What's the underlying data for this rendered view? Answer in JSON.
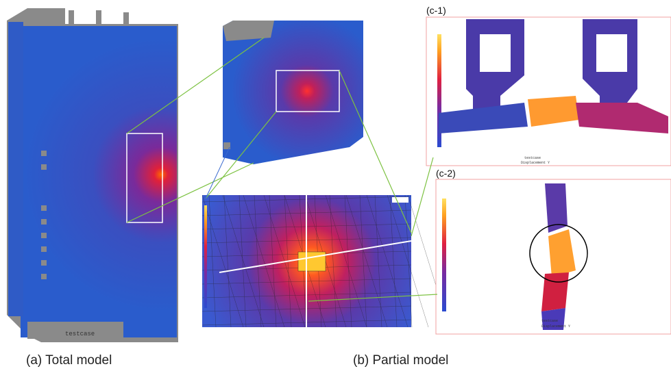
{
  "labels": {
    "total": "(a) Total model",
    "partial": "(b) Partial model",
    "c1": "(c-1)",
    "c2": "(c-2)"
  },
  "screens": {
    "total_caption": "testcase",
    "c1_footer": [
      "testcase",
      "Displacement Y"
    ],
    "c2_footer": [
      "testcase",
      "Displacement Y"
    ]
  }
}
